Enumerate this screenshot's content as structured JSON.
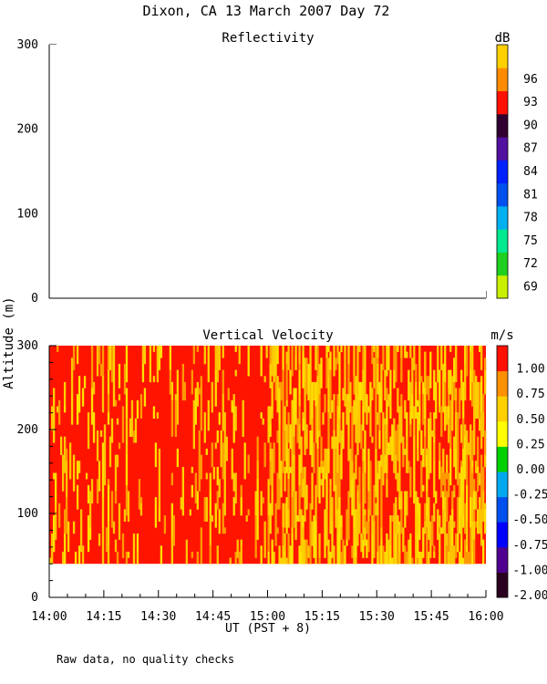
{
  "title": "Dixon, CA 13 March 2007  Day  72",
  "ylabel": "Altitude (m)",
  "xlabel": "UT  (PST + 8)",
  "footnote": "Raw data, no quality checks",
  "x_ticks": [
    "14:00",
    "14:15",
    "14:30",
    "14:45",
    "15:00",
    "15:15",
    "15:30",
    "15:45",
    "16:00"
  ],
  "colors": {
    "reflectivity_scale": [
      "#c8f000",
      "#20d020",
      "#00e890",
      "#00b0f0",
      "#0050f0",
      "#0020ff",
      "#5010a0",
      "#300030",
      "#ff1000",
      "#ff8c00",
      "#ffd000"
    ],
    "velocity_scale": [
      "#2a0020",
      "#500090",
      "#0000ff",
      "#0050f0",
      "#00a8f0",
      "#00d000",
      "#ffff00",
      "#ffd000",
      "#ff9000",
      "#ff1000"
    ]
  },
  "chart_data": [
    {
      "type": "heatmap",
      "title": "Reflectivity",
      "xlabel": "UT  (PST + 8)",
      "ylabel": "Altitude (m)",
      "xlim": [
        "14:00",
        "16:00"
      ],
      "ylim": [
        0,
        300
      ],
      "y_ticks": [
        0,
        100,
        200,
        300
      ],
      "colorbar": {
        "unit": "dB",
        "labels": [
          "69",
          "72",
          "75",
          "78",
          "81",
          "84",
          "87",
          "90",
          "93",
          "96"
        ]
      },
      "values": []
    },
    {
      "type": "heatmap",
      "title": "Vertical Velocity",
      "xlabel": "UT  (PST + 8)",
      "ylabel": "Altitude (m)",
      "xlim": [
        "14:00",
        "16:00"
      ],
      "ylim": [
        0,
        300
      ],
      "y_ticks": [
        0,
        100,
        200,
        300
      ],
      "data_altitude_range": [
        40,
        300
      ],
      "colorbar": {
        "unit": "m/s",
        "labels": [
          "-2.00",
          "-1.00",
          "-0.75",
          "-0.50",
          "-0.25",
          "0.00",
          "0.25",
          "0.50",
          "0.75",
          "1.00"
        ]
      },
      "dominant_values_by_period": [
        {
          "period": [
            "14:00",
            "15:00"
          ],
          "value": 1.0
        },
        {
          "period": [
            "15:00",
            "16:00"
          ],
          "value": 0.5
        }
      ]
    }
  ]
}
